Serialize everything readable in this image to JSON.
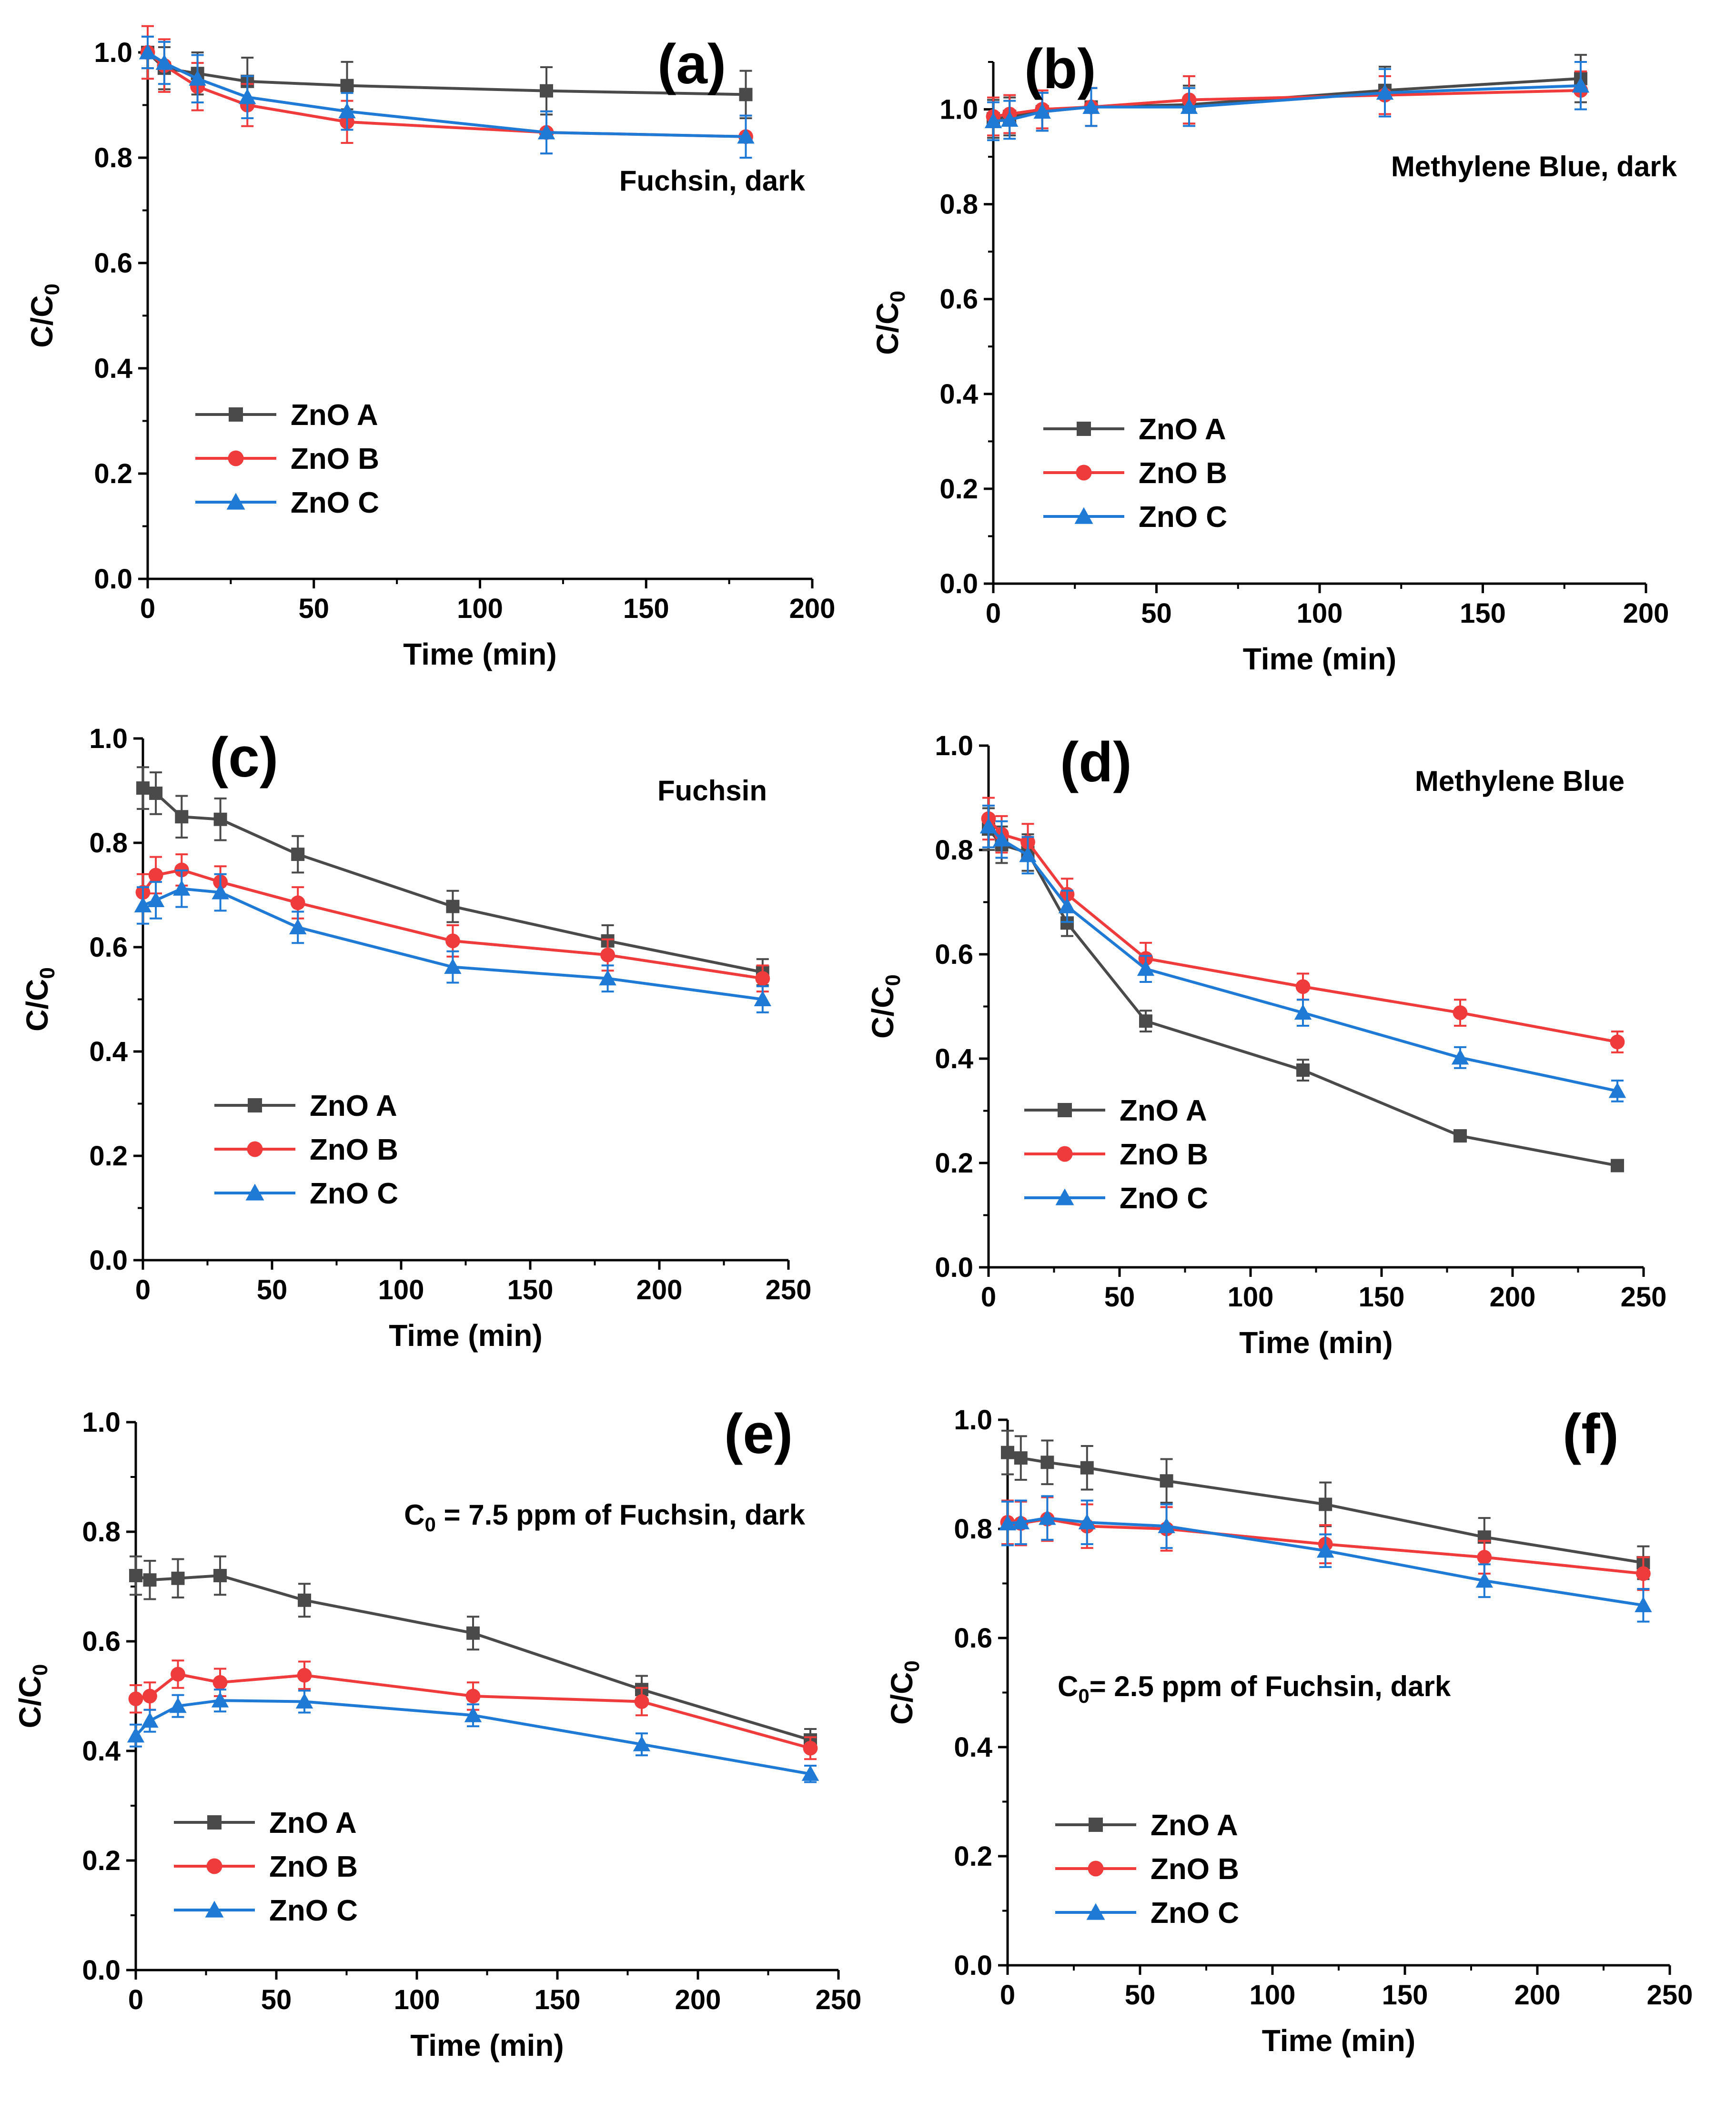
{
  "figure": "Six panels of C/C0 versus time for ZnO A, ZnO B and ZnO C",
  "colors": {
    "ZnO A": "#4a4a4a",
    "ZnO B": "#ef3b3b",
    "ZnO C": "#1f7ad6"
  },
  "markers": {
    "ZnO A": "square",
    "ZnO B": "circle",
    "ZnO C": "triangle"
  },
  "chart_data": [
    {
      "id": "a",
      "type": "line",
      "panel_label": "(a)",
      "annotation": "Fuchsin, dark",
      "xlabel": "Time (min)",
      "ylabel": "C/C0",
      "xlim": [
        0,
        200
      ],
      "ylim": [
        0,
        1.0
      ],
      "xticks": [
        "0",
        "50",
        "100",
        "150",
        "200"
      ],
      "yticks": [
        "0.0",
        "0.2",
        "0.4",
        "0.6",
        "0.8",
        "1.0"
      ],
      "x": [
        0,
        5,
        15,
        30,
        60,
        120,
        180
      ],
      "series": [
        {
          "name": "ZnO A",
          "values": [
            1.0,
            0.97,
            0.96,
            0.945,
            0.937,
            0.927,
            0.92
          ],
          "errors": [
            0.03,
            0.04,
            0.04,
            0.045,
            0.045,
            0.045,
            0.045
          ]
        },
        {
          "name": "ZnO B",
          "values": [
            1.0,
            0.975,
            0.935,
            0.9,
            0.868,
            0.848,
            0.84
          ],
          "errors": [
            0.05,
            0.05,
            0.045,
            0.04,
            0.04,
            0.04,
            0.04
          ]
        },
        {
          "name": "ZnO C",
          "values": [
            1.0,
            0.98,
            0.95,
            0.915,
            0.888,
            0.848,
            0.84
          ],
          "errors": [
            0.03,
            0.04,
            0.045,
            0.04,
            0.035,
            0.04,
            0.04
          ]
        }
      ]
    },
    {
      "id": "b",
      "type": "line",
      "panel_label": "(b)",
      "annotation": "Methylene Blue, dark",
      "xlabel": "Time (min)",
      "ylabel": "C/C0",
      "xlim": [
        0,
        200
      ],
      "ylim": [
        0,
        1.1
      ],
      "xticks": [
        "0",
        "50",
        "100",
        "150",
        "200"
      ],
      "yticks": [
        "0.0",
        "0.2",
        "0.4",
        "0.6",
        "0.8",
        "1.0"
      ],
      "x": [
        0,
        5,
        15,
        30,
        60,
        120,
        180
      ],
      "series": [
        {
          "name": "ZnO A",
          "values": [
            0.98,
            0.985,
            0.995,
            1.005,
            1.01,
            1.04,
            1.065
          ],
          "errors": [
            0.04,
            0.04,
            0.04,
            0.04,
            0.04,
            0.05,
            0.05
          ]
        },
        {
          "name": "ZnO B",
          "values": [
            0.985,
            0.99,
            1.0,
            1.005,
            1.02,
            1.03,
            1.04
          ],
          "errors": [
            0.04,
            0.04,
            0.04,
            0.04,
            0.05,
            0.04,
            0.04
          ]
        },
        {
          "name": "ZnO C",
          "values": [
            0.975,
            0.978,
            0.995,
            1.005,
            1.005,
            1.035,
            1.05
          ],
          "errors": [
            0.04,
            0.04,
            0.04,
            0.04,
            0.04,
            0.05,
            0.05
          ]
        }
      ]
    },
    {
      "id": "c",
      "type": "line",
      "panel_label": "(c)",
      "annotation": "Fuchsin",
      "xlabel": "Time (min)",
      "ylabel": "C/C0",
      "xlim": [
        0,
        250
      ],
      "ylim": [
        0,
        1.0
      ],
      "xticks": [
        "0",
        "50",
        "100",
        "150",
        "200",
        "250"
      ],
      "yticks": [
        "0.0",
        "0.2",
        "0.4",
        "0.6",
        "0.8",
        "1.0"
      ],
      "x": [
        0,
        5,
        15,
        30,
        60,
        120,
        180,
        240
      ],
      "series": [
        {
          "name": "ZnO A",
          "values": [
            0.905,
            0.895,
            0.85,
            0.845,
            0.778,
            0.678,
            0.612,
            0.552
          ],
          "errors": [
            0.04,
            0.04,
            0.04,
            0.04,
            0.035,
            0.03,
            0.03,
            0.025
          ]
        },
        {
          "name": "ZnO B",
          "values": [
            0.705,
            0.738,
            0.748,
            0.725,
            0.685,
            0.612,
            0.585,
            0.54
          ],
          "errors": [
            0.035,
            0.035,
            0.03,
            0.03,
            0.03,
            0.03,
            0.03,
            0.025
          ]
        },
        {
          "name": "ZnO C",
          "values": [
            0.68,
            0.69,
            0.712,
            0.705,
            0.638,
            0.562,
            0.54,
            0.5
          ],
          "errors": [
            0.035,
            0.035,
            0.035,
            0.035,
            0.03,
            0.03,
            0.025,
            0.025
          ]
        }
      ]
    },
    {
      "id": "d",
      "type": "line",
      "panel_label": "(d)",
      "annotation": "Methylene Blue",
      "xlabel": "Time (min)",
      "ylabel": "C/C0",
      "xlim": [
        0,
        250
      ],
      "ylim": [
        0,
        1.0
      ],
      "xticks": [
        "0",
        "50",
        "100",
        "150",
        "200",
        "250"
      ],
      "yticks": [
        "0.0",
        "0.2",
        "0.4",
        "0.6",
        "0.8",
        "1.0"
      ],
      "x": [
        0,
        5,
        15,
        30,
        60,
        120,
        180,
        240
      ],
      "series": [
        {
          "name": "ZnO A",
          "values": [
            0.84,
            0.81,
            0.795,
            0.66,
            0.472,
            0.378,
            0.252,
            0.195
          ],
          "errors": [
            0.04,
            0.035,
            0.035,
            0.025,
            0.02,
            0.02,
            0.01,
            0.01
          ]
        },
        {
          "name": "ZnO B",
          "values": [
            0.86,
            0.83,
            0.815,
            0.715,
            0.592,
            0.538,
            0.488,
            0.432
          ],
          "errors": [
            0.04,
            0.035,
            0.035,
            0.03,
            0.03,
            0.025,
            0.025,
            0.02
          ]
        },
        {
          "name": "ZnO C",
          "values": [
            0.845,
            0.82,
            0.79,
            0.692,
            0.572,
            0.488,
            0.402,
            0.338
          ],
          "errors": [
            0.04,
            0.035,
            0.035,
            0.03,
            0.025,
            0.025,
            0.02,
            0.02
          ]
        }
      ]
    },
    {
      "id": "e",
      "type": "line",
      "panel_label": "(e)",
      "annotation": "C0 = 7.5 ppm of Fuchsin, dark",
      "xlabel": "Time (min)",
      "ylabel": "C/C0",
      "xlim": [
        0,
        250
      ],
      "ylim": [
        0,
        1.0
      ],
      "xticks": [
        "0",
        "50",
        "100",
        "150",
        "200",
        "250"
      ],
      "yticks": [
        "0.0",
        "0.2",
        "0.4",
        "0.6",
        "0.8",
        "1.0"
      ],
      "x": [
        0,
        5,
        15,
        30,
        60,
        120,
        180,
        240
      ],
      "series": [
        {
          "name": "ZnO A",
          "values": [
            0.72,
            0.712,
            0.715,
            0.72,
            0.675,
            0.615,
            0.512,
            0.42
          ],
          "errors": [
            0.035,
            0.035,
            0.035,
            0.035,
            0.03,
            0.03,
            0.025,
            0.02
          ]
        },
        {
          "name": "ZnO B",
          "values": [
            0.495,
            0.5,
            0.54,
            0.525,
            0.538,
            0.5,
            0.49,
            0.405
          ],
          "errors": [
            0.025,
            0.025,
            0.025,
            0.025,
            0.025,
            0.025,
            0.025,
            0.02
          ]
        },
        {
          "name": "ZnO C",
          "values": [
            0.428,
            0.455,
            0.482,
            0.492,
            0.49,
            0.465,
            0.412,
            0.358
          ],
          "errors": [
            0.02,
            0.02,
            0.02,
            0.02,
            0.02,
            0.02,
            0.02,
            0.015
          ]
        }
      ]
    },
    {
      "id": "f",
      "type": "line",
      "panel_label": "(f)",
      "annotation": "C0= 2.5 ppm of Fuchsin, dark",
      "xlabel": "Time (min)",
      "ylabel": "C/C0",
      "xlim": [
        0,
        250
      ],
      "ylim": [
        0,
        1.0
      ],
      "xticks": [
        "0",
        "50",
        "100",
        "150",
        "200",
        "250"
      ],
      "yticks": [
        "0.0",
        "0.2",
        "0.4",
        "0.6",
        "0.8",
        "1.0"
      ],
      "x": [
        0,
        5,
        15,
        30,
        60,
        120,
        180,
        240
      ],
      "series": [
        {
          "name": "ZnO A",
          "values": [
            0.94,
            0.93,
            0.922,
            0.912,
            0.888,
            0.845,
            0.785,
            0.738
          ],
          "errors": [
            0.04,
            0.04,
            0.04,
            0.04,
            0.04,
            0.04,
            0.035,
            0.03
          ]
        },
        {
          "name": "ZnO B",
          "values": [
            0.812,
            0.81,
            0.818,
            0.805,
            0.8,
            0.772,
            0.748,
            0.718
          ],
          "errors": [
            0.04,
            0.04,
            0.04,
            0.04,
            0.04,
            0.035,
            0.03,
            0.03
          ]
        },
        {
          "name": "ZnO C",
          "values": [
            0.81,
            0.812,
            0.82,
            0.812,
            0.805,
            0.76,
            0.705,
            0.66
          ],
          "errors": [
            0.04,
            0.04,
            0.04,
            0.04,
            0.04,
            0.03,
            0.03,
            0.03
          ]
        }
      ]
    }
  ]
}
